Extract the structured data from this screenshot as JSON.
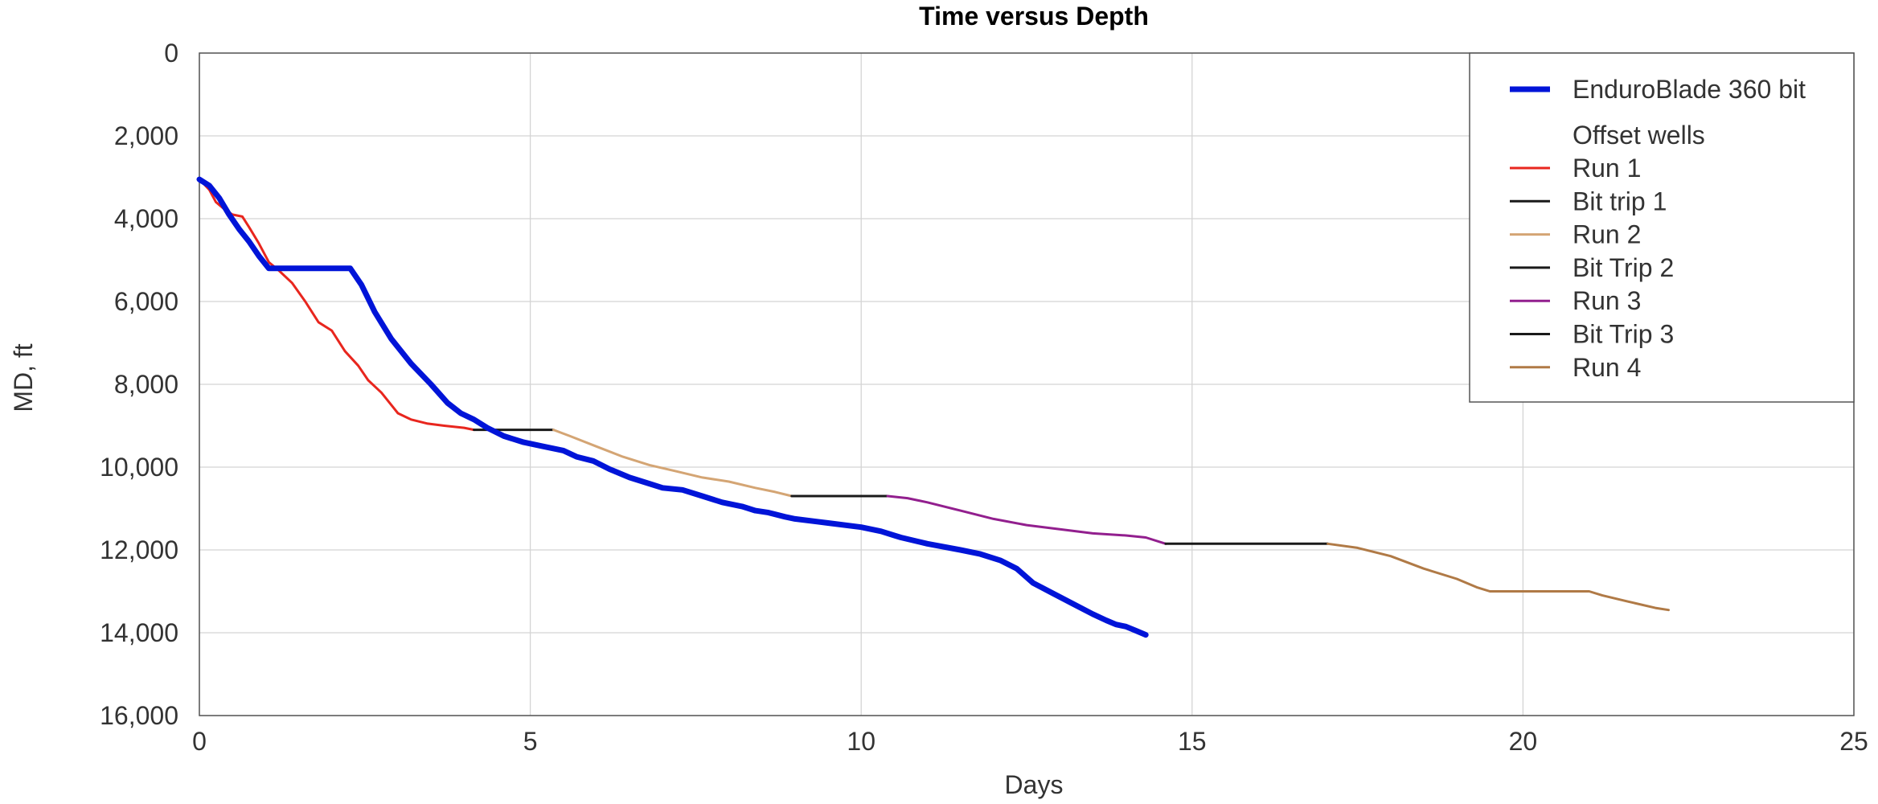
{
  "chart_data": {
    "type": "line",
    "title": "Time versus Depth",
    "xlabel": "Days",
    "ylabel": "MD, ft",
    "xlim": [
      0,
      25
    ],
    "ylim": [
      0,
      16000
    ],
    "y_inverted": true,
    "grid": true,
    "legend_position": "top-right",
    "x_ticks": [
      "0",
      "5",
      "10",
      "15",
      "20",
      "25"
    ],
    "y_ticks": [
      "0",
      "2,000",
      "4,000",
      "6,000",
      "8,000",
      "10,000",
      "12,000",
      "14,000",
      "16,000"
    ],
    "legend": {
      "subheading": "Offset wells"
    },
    "series": [
      {
        "name": "EnduroBlade 360 bit",
        "color": "#0014d8",
        "width": 7,
        "x": [
          0,
          0.15,
          0.3,
          0.45,
          0.6,
          0.75,
          0.9,
          1.05,
          1.5,
          2.0,
          2.28,
          2.45,
          2.65,
          2.9,
          3.2,
          3.5,
          3.75,
          3.95,
          4.15,
          4.35,
          4.6,
          4.9,
          5.2,
          5.5,
          5.7,
          5.95,
          6.2,
          6.5,
          6.8,
          7.0,
          7.3,
          7.6,
          7.9,
          8.2,
          8.4,
          8.6,
          8.85,
          9.0,
          9.5,
          10.0,
          10.3,
          10.5,
          10.6,
          11.0,
          11.5,
          11.8,
          12.1,
          12.35,
          12.6,
          12.9,
          13.2,
          13.5,
          13.7,
          13.85,
          14.0,
          14.15,
          14.3
        ],
        "y": [
          3050,
          3200,
          3500,
          3900,
          4250,
          4550,
          4900,
          5200,
          5200,
          5200,
          5200,
          5600,
          6250,
          6900,
          7500,
          8000,
          8450,
          8700,
          8850,
          9050,
          9250,
          9400,
          9500,
          9600,
          9750,
          9850,
          10050,
          10250,
          10400,
          10500,
          10550,
          10700,
          10850,
          10950,
          11050,
          11100,
          11200,
          11250,
          11350,
          11450,
          11550,
          11650,
          11700,
          11850,
          12000,
          12100,
          12250,
          12450,
          12800,
          13050,
          13300,
          13550,
          13700,
          13800,
          13850,
          13950,
          14050
        ]
      },
      {
        "name": "Run 1",
        "color": "#e8261e",
        "width": 3,
        "x": [
          0,
          0.15,
          0.25,
          0.4,
          0.5,
          0.65,
          0.75,
          0.9,
          1.05,
          1.2,
          1.4,
          1.6,
          1.8,
          2.0,
          2.2,
          2.4,
          2.55,
          2.75,
          3.0,
          3.2,
          3.45,
          3.7,
          4.0,
          4.15
        ],
        "y": [
          3050,
          3300,
          3600,
          3800,
          3900,
          3950,
          4200,
          4600,
          5050,
          5250,
          5550,
          6000,
          6500,
          6700,
          7200,
          7550,
          7900,
          8200,
          8700,
          8850,
          8950,
          9000,
          9050,
          9100
        ]
      },
      {
        "name": "Bit trip 1",
        "color": "#1a1a1a",
        "width": 3,
        "x": [
          4.15,
          5.35
        ],
        "y": [
          9100,
          9100
        ]
      },
      {
        "name": "Run 2",
        "color": "#d4a574",
        "width": 3,
        "x": [
          5.35,
          5.6,
          6.0,
          6.4,
          6.8,
          7.2,
          7.6,
          8.0,
          8.4,
          8.7,
          8.95
        ],
        "y": [
          9100,
          9250,
          9500,
          9750,
          9950,
          10100,
          10250,
          10350,
          10500,
          10600,
          10700
        ]
      },
      {
        "name": "Bit Trip 2",
        "color": "#1a1a1a",
        "width": 3,
        "x": [
          8.95,
          10.4
        ],
        "y": [
          10700,
          10700
        ]
      },
      {
        "name": "Run 3",
        "color": "#921f8e",
        "width": 3,
        "x": [
          10.4,
          10.7,
          11.0,
          11.5,
          12.0,
          12.5,
          13.0,
          13.5,
          14.0,
          14.3,
          14.6
        ],
        "y": [
          10700,
          10750,
          10850,
          11050,
          11250,
          11400,
          11500,
          11600,
          11650,
          11700,
          11850
        ]
      },
      {
        "name": "Bit Trip 3",
        "color": "#1a1a1a",
        "width": 3,
        "x": [
          14.6,
          17.05
        ],
        "y": [
          11850,
          11850
        ]
      },
      {
        "name": "Run 4",
        "color": "#b07a46",
        "width": 3,
        "x": [
          17.05,
          17.5,
          18.0,
          18.5,
          19.0,
          19.3,
          19.5,
          20.0,
          20.5,
          21.0,
          21.2,
          21.6,
          22.0,
          22.2
        ],
        "y": [
          11850,
          11950,
          12150,
          12450,
          12700,
          12900,
          13000,
          13000,
          13000,
          13000,
          13100,
          13250,
          13400,
          13450
        ]
      }
    ]
  }
}
